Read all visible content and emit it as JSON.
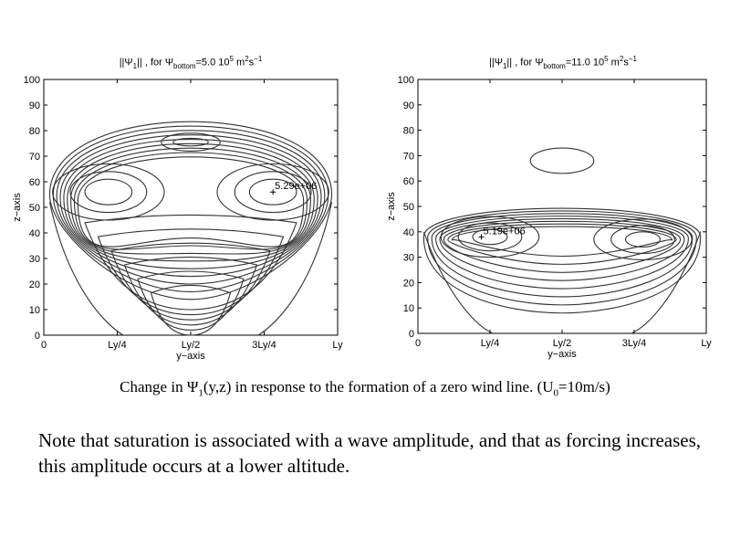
{
  "chart_data": [
    {
      "type": "contour",
      "title_prefix": "||Ψ",
      "title_sub1": "1",
      "title_mid": "|| , for Ψ",
      "title_sub2": "bottom",
      "title_value": "=5.0 10",
      "title_sup1": "5",
      "title_unit": " m",
      "title_sup2": "2",
      "title_unit2": "s",
      "title_sup3": "−1",
      "xlabel": "y−axis",
      "ylabel": "z−axis",
      "x_ticks": [
        "0",
        "Ly/4",
        "Ly/2",
        "3Ly/4",
        "Ly"
      ],
      "x_tick_positions": [
        0,
        0.25,
        0.5,
        0.75,
        1.0
      ],
      "y_ticks": [
        "0",
        "10",
        "20",
        "30",
        "40",
        "50",
        "60",
        "70",
        "80",
        "90",
        "100"
      ],
      "y_tick_values": [
        0,
        10,
        20,
        30,
        40,
        50,
        60,
        70,
        80,
        90,
        100
      ],
      "xlim": [
        0,
        1
      ],
      "ylim": [
        0,
        100
      ],
      "max_label": "5.29e+06",
      "max_location": [
        0.78,
        56
      ]
    },
    {
      "type": "contour",
      "title_prefix": "||Ψ",
      "title_sub1": "1",
      "title_mid": "|| , for Ψ",
      "title_sub2": "bottom",
      "title_value": "=11.0 10",
      "title_sup1": "5",
      "title_unit": " m",
      "title_sup2": "2",
      "title_unit2": "s",
      "title_sup3": "−1",
      "xlabel": "y−axis",
      "ylabel": "z−axis",
      "x_ticks": [
        "0",
        "Ly/4",
        "Ly/2",
        "3Ly/4",
        "Ly"
      ],
      "x_tick_positions": [
        0,
        0.25,
        0.5,
        0.75,
        1.0
      ],
      "y_ticks": [
        "0",
        "10",
        "20",
        "30",
        "40",
        "50",
        "60",
        "70",
        "80",
        "90",
        "100"
      ],
      "y_tick_values": [
        0,
        10,
        20,
        30,
        40,
        50,
        60,
        70,
        80,
        90,
        100
      ],
      "xlim": [
        0,
        1
      ],
      "ylim": [
        0,
        100
      ],
      "max_label": "5.19e+06",
      "max_location": [
        0.22,
        38
      ]
    }
  ],
  "caption": {
    "prefix": "Change in ",
    "symbol": "Ψ",
    "sub": "1",
    "suffix": "(y,z) in response to the formation of a zero wind line. (U",
    "sub2": "0",
    "end": "=10m/s)"
  },
  "note": "Note that saturation is associated with a wave amplitude, and that as forcing increases, this amplitude occurs at a lower altitude."
}
